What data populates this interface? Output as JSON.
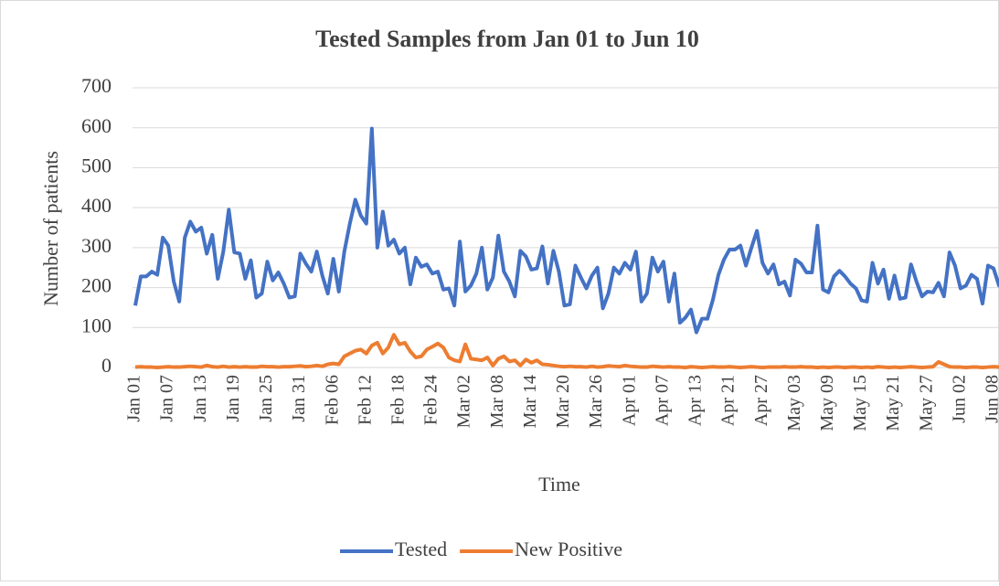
{
  "chart_data": {
    "type": "line",
    "title": "Tested Samples from Jan 01 to Jun 10",
    "x_label": "Time",
    "y_label": "Number of patients",
    "categories": [
      "Jan 01",
      null,
      null,
      null,
      null,
      null,
      "Jan 07",
      null,
      null,
      null,
      null,
      null,
      "Jan 13",
      null,
      null,
      null,
      null,
      null,
      "Jan 19",
      null,
      null,
      null,
      null,
      null,
      "Jan 25",
      null,
      null,
      null,
      null,
      null,
      "Jan 31",
      null,
      null,
      null,
      null,
      null,
      "Feb 06",
      null,
      null,
      null,
      null,
      null,
      "Feb 12",
      null,
      null,
      null,
      null,
      null,
      "Feb 18",
      null,
      null,
      null,
      null,
      null,
      "Feb 24",
      null,
      null,
      null,
      null,
      null,
      "Mar 02",
      null,
      null,
      null,
      null,
      null,
      "Mar 08",
      null,
      null,
      null,
      null,
      null,
      "Mar 14",
      null,
      null,
      null,
      null,
      null,
      "Mar 20",
      null,
      null,
      null,
      null,
      null,
      "Mar 26",
      null,
      null,
      null,
      null,
      null,
      "Apr 01",
      null,
      null,
      null,
      null,
      null,
      "Apr 07",
      null,
      null,
      null,
      null,
      null,
      "Apr 13",
      null,
      null,
      null,
      null,
      null,
      "Apr 21",
      null,
      null,
      null,
      null,
      null,
      "Apr 27",
      null,
      null,
      null,
      null,
      null,
      "May 03",
      null,
      null,
      null,
      null,
      null,
      "May 09",
      null,
      null,
      null,
      null,
      null,
      "May 15",
      null,
      null,
      null,
      null,
      null,
      "May 21",
      null,
      null,
      null,
      null,
      null,
      "May 27",
      null,
      null,
      null,
      null,
      null,
      "Jun 02",
      null,
      null,
      null,
      null,
      null,
      "Jun 08",
      null,
      null
    ],
    "series": [
      {
        "name": "Tested",
        "color": "#4472c4",
        "values": [
          155,
          228,
          228,
          240,
          232,
          325,
          305,
          215,
          165,
          325,
          365,
          340,
          350,
          285,
          332,
          222,
          290,
          395,
          288,
          285,
          222,
          268,
          175,
          185,
          265,
          218,
          238,
          210,
          175,
          178,
          285,
          260,
          240,
          290,
          230,
          185,
          272,
          190,
          290,
          360,
          420,
          380,
          360,
          598,
          300,
          390,
          305,
          320,
          285,
          300,
          208,
          275,
          252,
          258,
          235,
          240,
          195,
          198,
          155,
          315,
          190,
          205,
          235,
          300,
          195,
          225,
          330,
          240,
          215,
          178,
          292,
          278,
          245,
          248,
          303,
          210,
          292,
          240,
          155,
          158,
          255,
          225,
          198,
          230,
          250,
          148,
          185,
          250,
          235,
          262,
          245,
          290,
          165,
          185,
          275,
          240,
          265,
          165,
          235,
          112,
          125,
          145,
          88,
          122,
          122,
          170,
          232,
          270,
          295,
          295,
          305,
          255,
          300,
          342,
          262,
          235,
          258,
          208,
          215,
          180,
          270,
          260,
          238,
          238,
          355,
          195,
          188,
          228,
          242,
          228,
          210,
          198,
          168,
          165,
          262,
          210,
          245,
          172,
          230,
          172,
          175,
          258,
          215,
          178,
          190,
          188,
          212,
          178,
          288,
          255,
          198,
          205,
          232,
          222,
          160,
          255,
          248,
          205,
          265
        ]
      },
      {
        "name": "New Positive",
        "color": "#ed7d31",
        "values": [
          1,
          2,
          1,
          1,
          0,
          1,
          2,
          1,
          1,
          2,
          3,
          2,
          1,
          5,
          2,
          1,
          3,
          1,
          2,
          1,
          2,
          1,
          1,
          3,
          2,
          2,
          1,
          2,
          2,
          3,
          4,
          2,
          3,
          5,
          3,
          8,
          10,
          8,
          28,
          35,
          42,
          45,
          35,
          55,
          62,
          35,
          50,
          82,
          58,
          62,
          40,
          25,
          28,
          45,
          52,
          60,
          50,
          25,
          18,
          15,
          58,
          22,
          20,
          18,
          25,
          5,
          22,
          28,
          15,
          18,
          5,
          20,
          12,
          18,
          8,
          7,
          5,
          3,
          2,
          3,
          2,
          2,
          1,
          3,
          1,
          2,
          4,
          3,
          2,
          5,
          3,
          2,
          1,
          1,
          3,
          2,
          1,
          2,
          1,
          1,
          0,
          2,
          1,
          0,
          1,
          2,
          1,
          1,
          2,
          1,
          0,
          1,
          2,
          1,
          0,
          1,
          1,
          1,
          2,
          1,
          1,
          2,
          1,
          1,
          0,
          1,
          0,
          1,
          1,
          0,
          1,
          1,
          0,
          1,
          0,
          2,
          1,
          0,
          1,
          0,
          1,
          2,
          1,
          0,
          1,
          2,
          14,
          8,
          2,
          1,
          1,
          0,
          1,
          1,
          0,
          1,
          2,
          1,
          1
        ]
      }
    ],
    "ylim": [
      0,
      700
    ],
    "yticks": [
      0,
      100,
      200,
      300,
      400,
      500,
      600,
      700
    ],
    "grid": true,
    "legend": "bottom"
  }
}
